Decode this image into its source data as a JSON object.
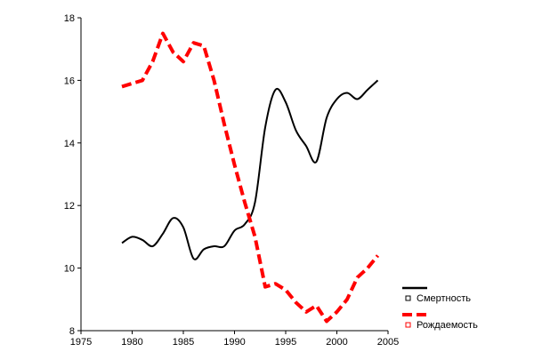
{
  "chart_data": {
    "type": "line",
    "title": "",
    "xlabel": "",
    "ylabel": "",
    "xlim": [
      1975,
      2005
    ],
    "ylim": [
      8,
      18
    ],
    "x_ticks": [
      "1975",
      "1980",
      "1985",
      "1990",
      "1995",
      "2000",
      "2005"
    ],
    "y_ticks": [
      "8",
      "10",
      "12",
      "14",
      "16",
      "18"
    ],
    "grid": false,
    "legend_position": "bottom-right",
    "series": [
      {
        "name": "Смертность",
        "color": "#000000",
        "style": "solid",
        "x": [
          1979,
          1980,
          1981,
          1982,
          1983,
          1984,
          1985,
          1986,
          1987,
          1988,
          1989,
          1990,
          1991,
          1992,
          1993,
          1994,
          1995,
          1996,
          1997,
          1998,
          1999,
          2000,
          2001,
          2002,
          2003,
          2004
        ],
        "values": [
          10.8,
          11.0,
          10.9,
          10.7,
          11.1,
          11.6,
          11.3,
          10.3,
          10.6,
          10.7,
          10.7,
          11.2,
          11.4,
          12.1,
          14.5,
          15.7,
          15.3,
          14.4,
          13.9,
          13.4,
          14.8,
          15.4,
          15.6,
          15.4,
          15.7,
          16.0
        ]
      },
      {
        "name": "Рождаемость",
        "color": "#ff0000",
        "style": "dashed",
        "x": [
          1979,
          1980,
          1981,
          1982,
          1983,
          1984,
          1985,
          1986,
          1987,
          1988,
          1989,
          1990,
          1991,
          1992,
          1993,
          1994,
          1995,
          1996,
          1997,
          1998,
          1999,
          2000,
          2001,
          2002,
          2003,
          2004
        ],
        "values": [
          15.8,
          15.9,
          16.0,
          16.6,
          17.5,
          16.9,
          16.6,
          17.2,
          17.1,
          16.0,
          14.6,
          13.3,
          12.1,
          11.0,
          9.4,
          9.5,
          9.3,
          8.9,
          8.6,
          8.8,
          8.3,
          8.6,
          9.0,
          9.7,
          10.0,
          10.4
        ]
      }
    ]
  }
}
